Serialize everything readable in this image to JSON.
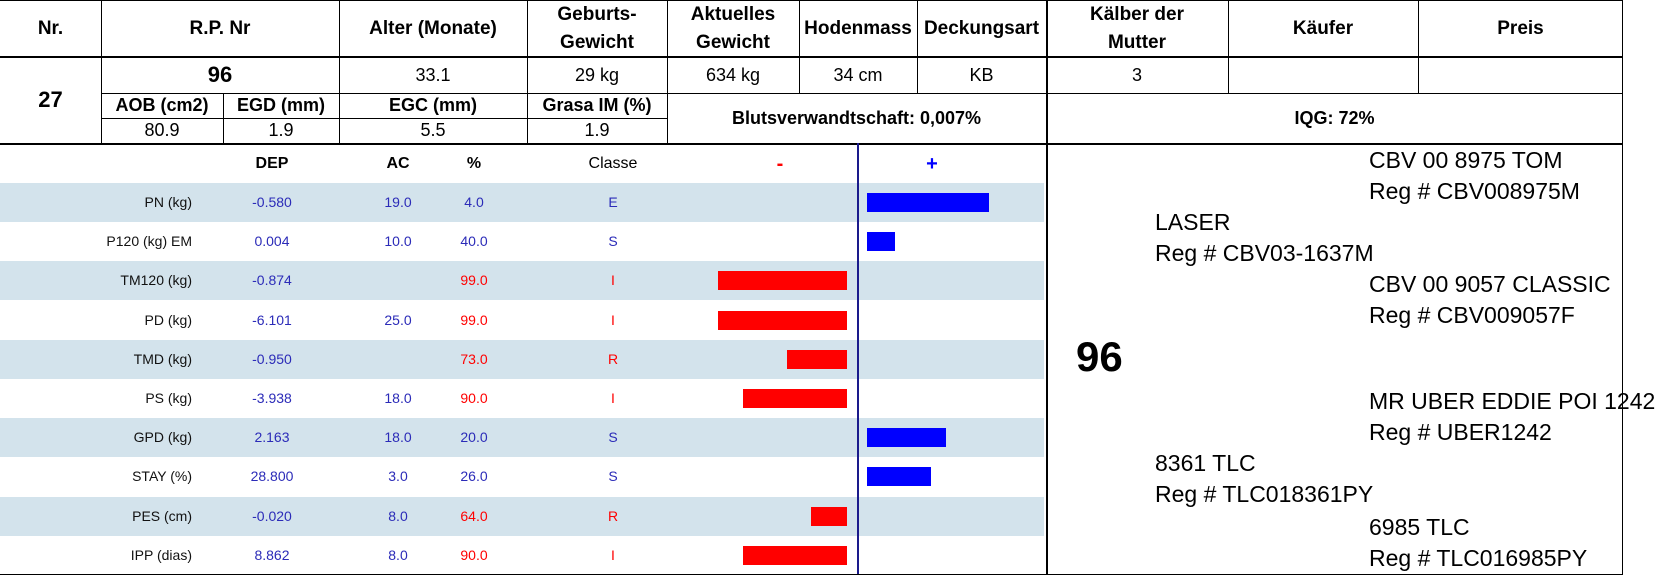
{
  "header": {
    "nr": "Nr.",
    "rp_nr": "R.P. Nr",
    "alter": "Alter (Monate)",
    "geburts_1": "Geburts-",
    "geburts_2": "Gewicht",
    "aktuelles_1": "Aktuelles",
    "aktuelles_2": "Gewicht",
    "hodenmass": "Hodenmass",
    "deckungsart": "Deckungsart",
    "kaelber_1": "Kälber der",
    "kaelber_2": "Mutter",
    "kaeufer": "Käufer",
    "preis": "Preis"
  },
  "animal": {
    "nr": "27",
    "rp_nr": "96",
    "alter": "33.1",
    "geburtsgewicht": "29 kg",
    "aktuelles_gewicht": "634 kg",
    "hodenmass": "34 cm",
    "deckungsart": "KB",
    "kaelber": "3",
    "kaeufer": "",
    "preis": ""
  },
  "carcass": {
    "aob_label": "AOB (cm2)",
    "egd_label": "EGD (mm)",
    "egc_label": "EGC (mm)",
    "grasa_label": "Grasa IM (%)",
    "aob": "80.9",
    "egd": "1.9",
    "egc": "5.5",
    "grasa": "1.9",
    "blutsverwandtschaft": "Blutsverwandtschaft: 0,007%",
    "iqg": "IQG: 72%"
  },
  "epd_table": {
    "col_dep": "DEP",
    "col_ac": "AC",
    "col_pct": "%",
    "col_classe": "Classe",
    "minus": "-",
    "plus": "+",
    "colors": {
      "negative": "#ff0000",
      "positive": "#0000ff",
      "shade": "#d3e3ec",
      "value_blue": "#2b2bb8"
    },
    "rows": [
      {
        "name": "PN (kg)",
        "dep": "-0.580",
        "ac": "19.0",
        "pct": "4.0",
        "classe": "E",
        "bar": 0.95,
        "status": "pos"
      },
      {
        "name": "P120 (kg) EM",
        "dep": "0.004",
        "ac": "10.0",
        "pct": "40.0",
        "classe": "S",
        "bar": 0.22,
        "status": "pos"
      },
      {
        "name": "TM120 (kg)",
        "dep": "-0.874",
        "ac": "",
        "pct": "99.0",
        "classe": "I",
        "bar": -0.99,
        "status": "neg"
      },
      {
        "name": "PD (kg)",
        "dep": "-6.101",
        "ac": "25.0",
        "pct": "99.0",
        "classe": "I",
        "bar": -0.99,
        "status": "neg"
      },
      {
        "name": "TMD (kg)",
        "dep": "-0.950",
        "ac": "",
        "pct": "73.0",
        "classe": "R",
        "bar": -0.46,
        "status": "neg"
      },
      {
        "name": "PS (kg)",
        "dep": "-3.938",
        "ac": "18.0",
        "pct": "90.0",
        "classe": "I",
        "bar": -0.8,
        "status": "neg"
      },
      {
        "name": "GPD (kg)",
        "dep": "2.163",
        "ac": "18.0",
        "pct": "20.0",
        "classe": "S",
        "bar": 0.62,
        "status": "pos"
      },
      {
        "name": "STAY (%)",
        "dep": "28.800",
        "ac": "3.0",
        "pct": "26.0",
        "classe": "S",
        "bar": 0.5,
        "status": "pos"
      },
      {
        "name": "PES (cm)",
        "dep": "-0.020",
        "ac": "8.0",
        "pct": "64.0",
        "classe": "R",
        "bar": -0.28,
        "status": "neg"
      },
      {
        "name": "IPP (dias)",
        "dep": "8.862",
        "ac": "8.0",
        "pct": "90.0",
        "classe": "I",
        "bar": -0.8,
        "status": "neg"
      }
    ]
  },
  "pedigree": {
    "animal_id": "96",
    "sire_sire_name": "CBV 00 8975 TOM",
    "sire_sire_reg": "Reg # CBV008975M",
    "sire_name": "LASER",
    "sire_reg": "Reg # CBV03-1637M",
    "sire_dam_name": "CBV 00 9057 CLASSIC",
    "sire_dam_reg": "Reg # CBV009057F",
    "dam_sire_name": "MR UBER EDDIE POI 1242",
    "dam_sire_reg": "Reg # UBER1242",
    "dam_name": "8361 TLC",
    "dam_reg": "Reg # TLC018361PY",
    "dam_dam_name": "6985 TLC",
    "dam_dam_reg": "Reg # TLC016985PY"
  }
}
